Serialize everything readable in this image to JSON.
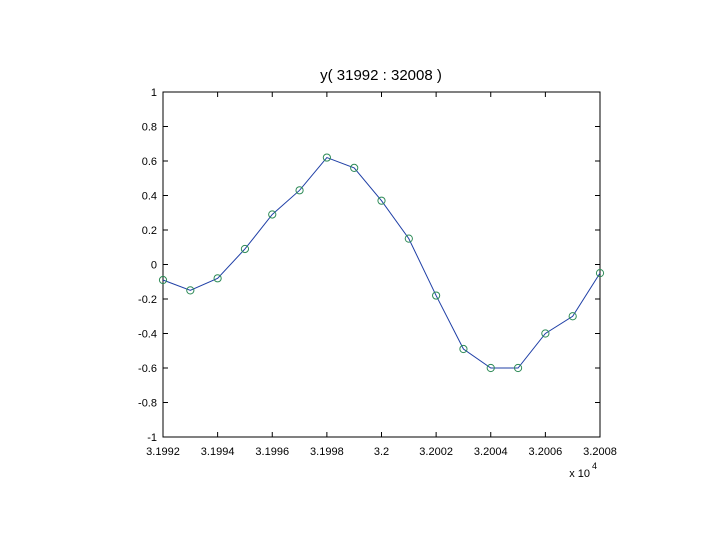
{
  "chart_data": {
    "type": "line",
    "title": "y( 31992 : 32008 )",
    "xlabel": "",
    "ylabel": "",
    "x_tick_labels": [
      "3.1992",
      "3.1994",
      "3.1996",
      "3.1998",
      "3.2",
      "3.2002",
      "3.2004",
      "3.2006",
      "3.2008"
    ],
    "x_exponent_label": "x 10",
    "x_exponent_power": "4",
    "y_tick_labels": [
      "1",
      "0.8",
      "0.6",
      "0.4",
      "0.2",
      "0",
      "-0.2",
      "-0.4",
      "-0.6",
      "-0.8",
      "-1"
    ],
    "xlim": [
      31992,
      32008
    ],
    "ylim": [
      -1,
      1
    ],
    "grid": false,
    "marker": "circle",
    "colors": {
      "line": "#1f3fa6",
      "marker": "#2e8b57",
      "axes": "#000000"
    },
    "series": [
      {
        "x": [
          31992,
          31993,
          31994,
          31995,
          31996,
          31997,
          31998,
          31999,
          32000,
          32001,
          32002,
          32003,
          32004,
          32005,
          32006,
          32007,
          32008
        ],
        "values": [
          -0.09,
          -0.15,
          -0.08,
          0.09,
          0.29,
          0.43,
          0.62,
          0.56,
          0.37,
          0.15,
          -0.18,
          -0.49,
          -0.6,
          -0.6,
          -0.4,
          -0.3,
          -0.05
        ]
      }
    ]
  }
}
